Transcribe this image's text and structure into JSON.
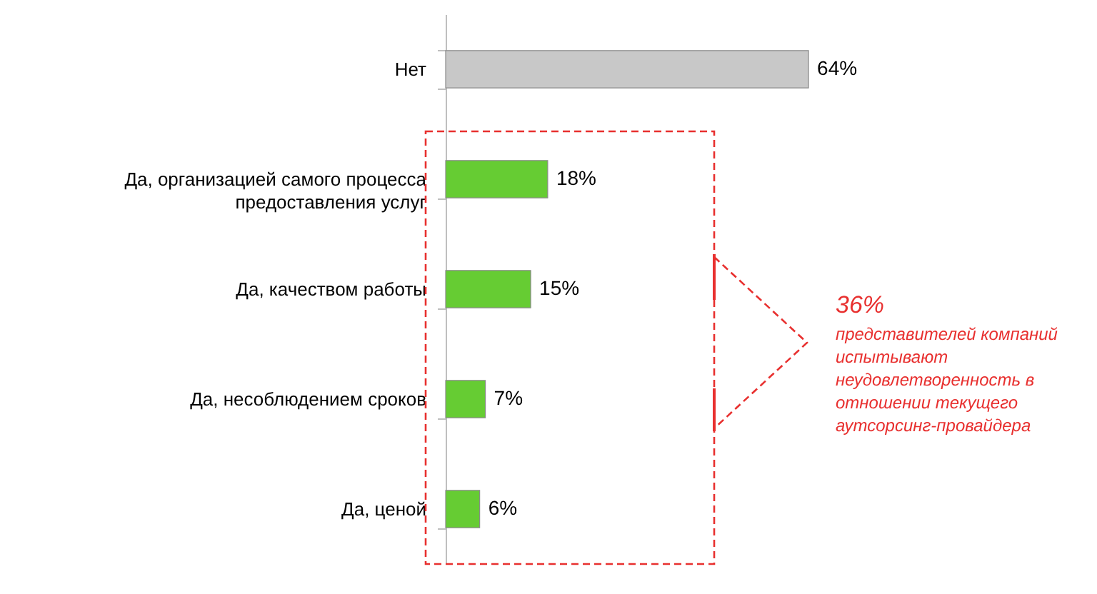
{
  "chart_data": {
    "type": "bar",
    "orientation": "horizontal",
    "categories": [
      "Нет",
      "Да, организацией самого процесса предоставления услуг",
      "Да, качеством работы",
      "Да, несоблюдением сроков",
      "Да, ценой"
    ],
    "values": [
      64,
      18,
      15,
      7,
      6
    ],
    "colors": [
      "#c8c8c8",
      "#66cc33",
      "#66cc33",
      "#66cc33",
      "#66cc33"
    ],
    "value_labels": [
      "64%",
      "18%",
      "15%",
      "7%",
      "6%"
    ],
    "tick_labels": "y",
    "annotations": [
      "36%",
      "представителей компаний испытывают неудовлетворенность в отношении текущего аутсорсинг-провайдера"
    ]
  }
}
